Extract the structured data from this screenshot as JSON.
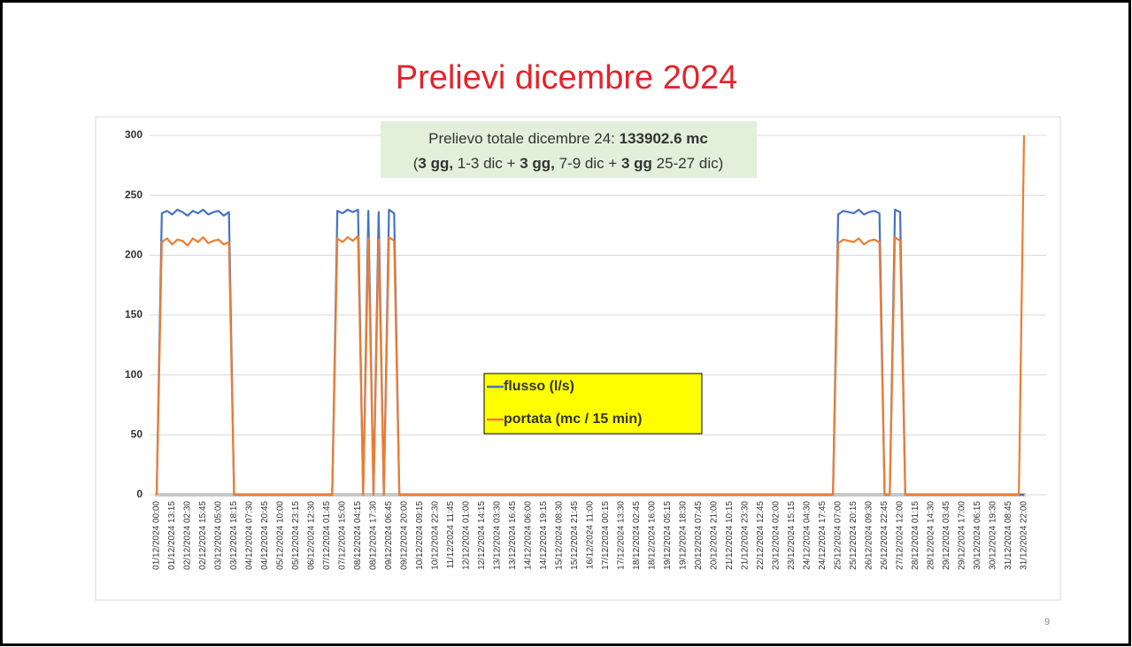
{
  "title": "Prelievi dicembre 2024",
  "page_number": "9",
  "chart_data": {
    "type": "line",
    "annotation": {
      "lines": [
        [
          {
            "text": "Prelievo totale dicembre 24: "
          },
          {
            "text": "133902.6 mc",
            "bold": true
          }
        ],
        [
          {
            "text": "("
          },
          {
            "text": "3 gg,",
            "bold": true
          },
          {
            "text": " 1-3 dic + "
          },
          {
            "text": "3 gg,",
            "bold": true
          },
          {
            "text": " 7-9 dic + "
          },
          {
            "text": "3 gg",
            "bold": true
          },
          {
            "text": " 25-27 dic)"
          }
        ]
      ]
    },
    "legend_position": "center",
    "grid": true,
    "ylim": [
      0,
      300
    ],
    "yticks": [
      0,
      50,
      100,
      150,
      200,
      250,
      300
    ],
    "categories": [
      "01/12/2024 00:00",
      null,
      null,
      "01/12/2024 13:15",
      null,
      null,
      "02/12/2024 02:30",
      null,
      null,
      "02/12/2024 15:45",
      null,
      null,
      "03/12/2024 05:00",
      null,
      null,
      "03/12/2024 18:15",
      null,
      null,
      "04/12/2024 07:30",
      null,
      null,
      "04/12/2024 20:45",
      null,
      null,
      "05/12/2024 10:00",
      null,
      null,
      "05/12/2024 23:15",
      null,
      null,
      "06/12/2024 12:30",
      null,
      null,
      "07/12/2024 01:45",
      null,
      null,
      "07/12/2024 15:00",
      null,
      null,
      "08/12/2024 04:15",
      null,
      null,
      "08/12/2024 17:30",
      null,
      null,
      "09/12/2024 06:45",
      null,
      null,
      "09/12/2024 20:00",
      null,
      null,
      "10/12/2024 09:15",
      null,
      null,
      "10/12/2024 22:30",
      null,
      null,
      "11/12/2024 11:45",
      null,
      null,
      "12/12/2024 01:00",
      null,
      null,
      "12/12/2024 14:15",
      null,
      null,
      "13/12/2024 03:30",
      null,
      null,
      "13/12/2024 16:45",
      null,
      null,
      "14/12/2024 06:00",
      null,
      null,
      "14/12/2024 19:15",
      null,
      null,
      "15/12/2024 08:30",
      null,
      null,
      "15/12/2024 21:45",
      null,
      null,
      "16/12/2024 11:00",
      null,
      null,
      "17/12/2024 00:15",
      null,
      null,
      "17/12/2024 13:30",
      null,
      null,
      "18/12/2024 02:45",
      null,
      null,
      "18/12/2024 16:00",
      null,
      null,
      "19/12/2024 05:15",
      null,
      null,
      "19/12/2024 18:30",
      null,
      null,
      "20/12/2024 07:45",
      null,
      null,
      "20/12/2024 21:00",
      null,
      null,
      "21/12/2024 10:15",
      null,
      null,
      "21/12/2024 23:30",
      null,
      null,
      "22/12/2024 12:45",
      null,
      null,
      "23/12/2024 02:00",
      null,
      null,
      "23/12/2024 15:15",
      null,
      null,
      "24/12/2024 04:30",
      null,
      null,
      "24/12/2024 17:45",
      null,
      null,
      "25/12/2024 07:00",
      null,
      null,
      "25/12/2024 20:15",
      null,
      null,
      "26/12/2024 09:30",
      null,
      null,
      "26/12/2024 22:45",
      null,
      null,
      "27/12/2024 12:00",
      null,
      null,
      "28/12/2024 01:15",
      null,
      null,
      "28/12/2024 14:30",
      null,
      null,
      "29/12/2024 03:45",
      null,
      null,
      "29/12/2024 17:00",
      null,
      null,
      "30/12/2024 06:15",
      null,
      null,
      "30/12/2024 19:30",
      null,
      null,
      "31/12/2024 08:45",
      null,
      null,
      "31/12/2024 22:00"
    ],
    "series": [
      {
        "name": "flusso (l/s)",
        "color": "#4472c4",
        "values": [
          0,
          235,
          237,
          234,
          238,
          236,
          233,
          237,
          235,
          238,
          234,
          236,
          237,
          233,
          236,
          0,
          0,
          0,
          0,
          0,
          0,
          0,
          0,
          0,
          0,
          0,
          0,
          0,
          0,
          0,
          0,
          0,
          0,
          0,
          0,
          237,
          235,
          238,
          236,
          238,
          0,
          237,
          0,
          236,
          0,
          238,
          235,
          0,
          0,
          0,
          0,
          0,
          0,
          0,
          0,
          0,
          0,
          0,
          0,
          0,
          0,
          0,
          0,
          0,
          0,
          0,
          0,
          0,
          0,
          0,
          0,
          0,
          0,
          0,
          0,
          0,
          0,
          0,
          0,
          0,
          0,
          0,
          0,
          0,
          0,
          0,
          0,
          0,
          0,
          0,
          0,
          0,
          0,
          0,
          0,
          0,
          0,
          0,
          0,
          0,
          0,
          0,
          0,
          0,
          0,
          0,
          0,
          0,
          0,
          0,
          0,
          0,
          0,
          0,
          0,
          0,
          0,
          0,
          0,
          0,
          0,
          0,
          0,
          0,
          0,
          0,
          0,
          0,
          0,
          0,
          0,
          0,
          234,
          237,
          236,
          235,
          238,
          234,
          236,
          237,
          235,
          0,
          0,
          238,
          236,
          0,
          0,
          0,
          0,
          0,
          0,
          0,
          0,
          0,
          0,
          0,
          0,
          0,
          0,
          0,
          0,
          0,
          0,
          0,
          0,
          0,
          0,
          0,
          0
        ]
      },
      {
        "name": "portata (mc / 15 min)",
        "color": "#ed7d31",
        "values": [
          0,
          211,
          214,
          209,
          213,
          212,
          208,
          214,
          211,
          215,
          210,
          212,
          213,
          209,
          211,
          0,
          0,
          0,
          0,
          0,
          0,
          0,
          0,
          0,
          0,
          0,
          0,
          0,
          0,
          0,
          0,
          0,
          0,
          0,
          0,
          214,
          211,
          215,
          212,
          216,
          0,
          214,
          0,
          213,
          0,
          215,
          212,
          0,
          0,
          0,
          0,
          0,
          0,
          0,
          0,
          0,
          0,
          0,
          0,
          0,
          0,
          0,
          0,
          0,
          0,
          0,
          0,
          0,
          0,
          0,
          0,
          0,
          0,
          0,
          0,
          0,
          0,
          0,
          0,
          0,
          0,
          0,
          0,
          0,
          0,
          0,
          0,
          0,
          0,
          0,
          0,
          0,
          0,
          0,
          0,
          0,
          0,
          0,
          0,
          0,
          0,
          0,
          0,
          0,
          0,
          0,
          0,
          0,
          0,
          0,
          0,
          0,
          0,
          0,
          0,
          0,
          0,
          0,
          0,
          0,
          0,
          0,
          0,
          0,
          0,
          0,
          0,
          0,
          0,
          0,
          0,
          0,
          210,
          213,
          212,
          211,
          214,
          209,
          212,
          213,
          211,
          0,
          0,
          215,
          212,
          0,
          0,
          0,
          0,
          0,
          0,
          0,
          0,
          0,
          0,
          0,
          0,
          0,
          0,
          0,
          0,
          0,
          0,
          0,
          0,
          0,
          0,
          0,
          300
        ]
      }
    ]
  }
}
